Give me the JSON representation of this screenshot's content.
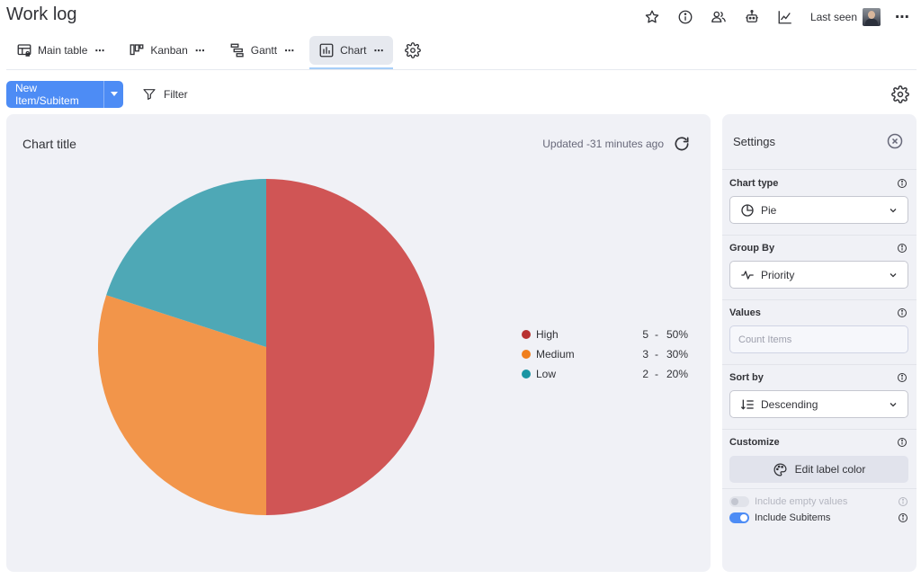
{
  "header": {
    "title": "Work log",
    "last_seen_label": "Last seen",
    "icons": [
      "star-icon",
      "info-icon",
      "people-icon",
      "robot-icon",
      "activity-chart-icon"
    ],
    "more": "⋯"
  },
  "tabs": [
    {
      "label": "Main table",
      "more": "⋯",
      "icon": "table-icon"
    },
    {
      "label": "Kanban",
      "more": "⋯",
      "icon": "kanban-icon"
    },
    {
      "label": "Gantt",
      "more": "⋯",
      "icon": "gantt-icon"
    },
    {
      "label": "Chart",
      "more": "⋯",
      "icon": "bar-chart-icon",
      "active": true
    }
  ],
  "toolbar": {
    "new_item_label": "New Item/Subitem",
    "filter_label": "Filter"
  },
  "chart": {
    "title": "Chart title",
    "updated": "Updated -31 minutes ago"
  },
  "chart_data": {
    "type": "pie",
    "title": "Chart title",
    "categories": [
      "High",
      "Medium",
      "Low"
    ],
    "values": [
      5,
      3,
      2
    ],
    "percentages": [
      "50%",
      "30%",
      "20%"
    ],
    "colors": [
      "#d05555",
      "#f2954a",
      "#4ea8b6"
    ],
    "legend_colors": [
      "#b83232",
      "#f07f1e",
      "#1b95a3"
    ],
    "legend_position": "right",
    "legend_separator": "-"
  },
  "settings": {
    "title": "Settings",
    "chart_type_label": "Chart type",
    "chart_type_value": "Pie",
    "group_by_label": "Group By",
    "group_by_value": "Priority",
    "values_label": "Values",
    "values_placeholder": "Count Items",
    "sort_by_label": "Sort by",
    "sort_by_value": "Descending",
    "customize_label": "Customize",
    "edit_label_color": "Edit label color",
    "include_empty_label": "Include empty values",
    "include_empty_on": false,
    "include_subitems_label": "Include Subitems",
    "include_subitems_on": true
  },
  "colors": {
    "accent": "#4d8cf5",
    "panel_bg": "#f0f1f6",
    "text": "#323338"
  }
}
